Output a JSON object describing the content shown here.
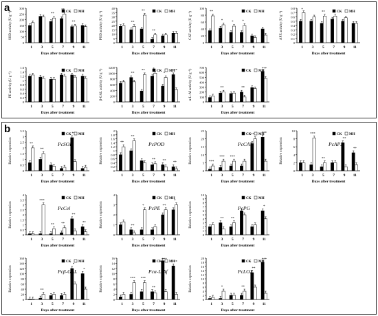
{
  "panels": [
    {
      "label": "a"
    },
    {
      "label": "b"
    }
  ],
  "legend": {
    "ck": "CK",
    "mh": "MH"
  },
  "colors": {
    "ck": "#000000",
    "mh": "#ffffff",
    "axis": "#000000"
  },
  "chart_data": [
    {
      "panel": "a",
      "type": "bar",
      "ylabel": "SOD activity (U g⁻¹)",
      "xlabel": "Days after treatment",
      "categories": [
        "1",
        "3",
        "5",
        "7",
        "9",
        "11"
      ],
      "ylim": [
        0,
        300
      ],
      "yticks": [
        "0",
        "50",
        "100",
        "150",
        "200",
        "250",
        "300"
      ],
      "series": [
        {
          "name": "CK",
          "values": [
            150,
            230,
            185,
            210,
            140,
            150
          ]
        },
        {
          "name": "MH",
          "values": [
            175,
            225,
            215,
            250,
            145,
            140
          ]
        }
      ],
      "labels": [
        "",
        "",
        "**",
        "**",
        "**",
        ""
      ]
    },
    {
      "panel": "a",
      "type": "bar",
      "ylabel": "POD activity (U g⁻¹)",
      "xlabel": "Days after treatment",
      "categories": [
        "1",
        "3",
        "5",
        "7",
        "9",
        "11"
      ],
      "ylim": [
        0,
        40
      ],
      "yticks": [
        "0",
        "5",
        "10",
        "15",
        "20",
        "25",
        "30",
        "35",
        "40"
      ],
      "series": [
        {
          "name": "CK",
          "values": [
            19,
            15,
            16,
            4,
            8,
            11
          ]
        },
        {
          "name": "MH",
          "values": [
            20,
            19,
            32,
            9,
            9,
            11
          ]
        }
      ],
      "labels": [
        "",
        "**",
        "**",
        "**",
        "",
        ""
      ]
    },
    {
      "panel": "a",
      "type": "bar",
      "ylabel": "CAT activity (U g⁻¹)",
      "xlabel": "Days after treatment",
      "categories": [
        "1",
        "3",
        "5",
        "7",
        "9",
        "11"
      ],
      "ylim": [
        0,
        100
      ],
      "yticks": [
        "0",
        "20",
        "40",
        "60",
        "80",
        "100"
      ],
      "series": [
        {
          "name": "CK",
          "values": [
            35,
            42,
            30,
            30,
            20,
            40
          ]
        },
        {
          "name": "MH",
          "values": [
            78,
            52,
            48,
            50,
            15,
            22
          ]
        }
      ],
      "labels": [
        "**",
        "*",
        "*",
        "*",
        "",
        ""
      ]
    },
    {
      "panel": "a",
      "type": "bar",
      "ylabel": "APX activity (U g⁻¹)",
      "xlabel": "Days after treatment",
      "categories": [
        "1",
        "3",
        "5",
        "7",
        "9",
        "11"
      ],
      "ylim": [
        0,
        0.8
      ],
      "yticks": [
        "0",
        "0.1",
        "0.2",
        "0.3",
        "0.4",
        "0.5",
        "0.6",
        "0.7",
        "0.8"
      ],
      "series": [
        {
          "name": "CK",
          "values": [
            0.5,
            0.5,
            0.45,
            0.55,
            0.5,
            0.45
          ]
        },
        {
          "name": "MH",
          "values": [
            0.7,
            0.6,
            0.62,
            0.62,
            0.58,
            0.45
          ]
        }
      ],
      "labels": [
        "*",
        "",
        "**",
        "*",
        "",
        ""
      ]
    },
    {
      "panel": "a",
      "type": "bar",
      "ylabel": "PE activity (U g⁻¹)",
      "xlabel": "Days after treatment",
      "categories": [
        "1",
        "3",
        "5",
        "7",
        "9",
        "11"
      ],
      "ylim": [
        0,
        1.6
      ],
      "yticks": [
        "0",
        "0.2",
        "0.4",
        "0.6",
        "0.8",
        "1",
        "1.2",
        "1.4",
        "1.6"
      ],
      "series": [
        {
          "name": "CK",
          "values": [
            1.2,
            1.15,
            1.05,
            1.25,
            1.25,
            1.2
          ]
        },
        {
          "name": "MH",
          "values": [
            1.25,
            1.1,
            1.05,
            1.2,
            1.15,
            1.1
          ]
        }
      ],
      "labels": [
        "",
        "",
        "",
        "",
        "",
        ""
      ]
    },
    {
      "panel": "a",
      "type": "bar",
      "ylabel": "β-GAL activity (U g⁻¹)",
      "xlabel": "Days after treatment",
      "categories": [
        "1",
        "3",
        "5",
        "7",
        "9",
        "11"
      ],
      "ylim": [
        0,
        1200
      ],
      "yticks": [
        "0",
        "200",
        "400",
        "600",
        "800",
        "1000",
        "1200"
      ],
      "series": [
        {
          "name": "CK",
          "values": [
            650,
            850,
            380,
            900,
            550,
            950
          ]
        },
        {
          "name": "MH",
          "values": [
            700,
            700,
            950,
            1000,
            850,
            430
          ]
        }
      ],
      "labels": [
        "",
        "**",
        "**",
        "*",
        "*",
        "***"
      ]
    },
    {
      "panel": "a",
      "type": "bar",
      "ylabel": "α-L-Af activity (U g⁻¹)",
      "xlabel": "Days after treatment",
      "categories": [
        "1",
        "3",
        "5",
        "7",
        "9",
        "11"
      ],
      "ylim": [
        0,
        700
      ],
      "yticks": [
        "0",
        "100",
        "200",
        "300",
        "400",
        "500",
        "600",
        "700"
      ],
      "series": [
        {
          "name": "CK",
          "values": [
            90,
            180,
            170,
            200,
            290,
            620
          ]
        },
        {
          "name": "MH",
          "values": [
            120,
            200,
            180,
            100,
            270,
            480
          ]
        }
      ],
      "labels": [
        "",
        "**",
        "",
        "**",
        "",
        "***"
      ]
    },
    {
      "panel": "b",
      "type": "bar",
      "gene": "PcSOD",
      "ylabel": "Relative expression",
      "xlabel": "Days after treatment",
      "categories": [
        "1",
        "3",
        "5",
        "7",
        "9",
        "11"
      ],
      "ylim": [
        0,
        3.5
      ],
      "yticks": [
        "0",
        "0.5",
        "1",
        "1.5",
        "2",
        "2.5",
        "3",
        "3.5"
      ],
      "series": [
        {
          "name": "CK",
          "values": [
            0.7,
            1.0,
            0.5,
            0.2,
            2.9,
            0.2
          ]
        },
        {
          "name": "MH",
          "values": [
            2.0,
            1.5,
            0.4,
            0.3,
            0.8,
            0.3
          ]
        }
      ],
      "labels": [
        "**",
        "**",
        "",
        "",
        "**",
        ""
      ]
    },
    {
      "panel": "b",
      "type": "bar",
      "gene": "PcPOD",
      "ylabel": "Relative expression",
      "xlabel": "Days after treatment",
      "categories": [
        "1",
        "3",
        "5",
        "7",
        "9",
        "11"
      ],
      "ylim": [
        0,
        2.0
      ],
      "yticks": [
        "0",
        "0.2",
        "0.4",
        "0.6",
        "0.8",
        "1",
        "1.2",
        "1.4",
        "1.6",
        "1.8",
        "2"
      ],
      "series": [
        {
          "name": "CK",
          "values": [
            0.8,
            1.0,
            0.5,
            0.3,
            0.3,
            0.2
          ]
        },
        {
          "name": "MH",
          "values": [
            1.2,
            1.5,
            0.4,
            0.35,
            0.2,
            0.1
          ]
        }
      ],
      "labels": [
        "**",
        "**",
        "",
        "**",
        "**",
        "**"
      ]
    },
    {
      "panel": "b",
      "type": "bar",
      "gene": "PcCAT",
      "ylabel": "Relative expression",
      "xlabel": "Days after treatment",
      "categories": [
        "1",
        "3",
        "5",
        "7",
        "9",
        "11"
      ],
      "ylim": [
        0,
        25
      ],
      "yticks": [
        "0",
        "5",
        "10",
        "15",
        "20",
        "25"
      ],
      "series": [
        {
          "name": "CK",
          "values": [
            1,
            2,
            3,
            3,
            17,
            21
          ]
        },
        {
          "name": "MH",
          "values": [
            3,
            6,
            6,
            6,
            20,
            6
          ]
        }
      ],
      "labels": [
        "***",
        "***",
        "***",
        "",
        "***",
        "***"
      ]
    },
    {
      "panel": "b",
      "type": "bar",
      "gene": "PcAPX",
      "ylabel": "Relative expression",
      "xlabel": "Days after treatment",
      "categories": [
        "1",
        "3",
        "5",
        "7",
        "9",
        "11"
      ],
      "ylim": [
        0,
        10
      ],
      "yticks": [
        "0",
        "2",
        "4",
        "6",
        "8",
        "10"
      ],
      "series": [
        {
          "name": "CK",
          "values": [
            2,
            1.5,
            1,
            2,
            7,
            4.5
          ]
        },
        {
          "name": "MH",
          "values": [
            2,
            8.2,
            2,
            2,
            1,
            1.5
          ]
        }
      ],
      "labels": [
        "",
        "***",
        "**",
        "",
        "**",
        "**"
      ]
    },
    {
      "panel": "b",
      "type": "bar",
      "gene": "PcCel",
      "ylabel": "Relative expression",
      "xlabel": "Days after treatment",
      "categories": [
        "1",
        "3",
        "5",
        "7",
        "9",
        "11"
      ],
      "ylim": [
        0,
        4.0
      ],
      "yticks": [
        "0",
        "0.5",
        "1",
        "1.5",
        "2",
        "2.5",
        "3",
        "3.5",
        "4"
      ],
      "series": [
        {
          "name": "CK",
          "values": [
            0.1,
            0.1,
            0.1,
            0.2,
            1.6,
            0.8
          ]
        },
        {
          "name": "MH",
          "values": [
            0.1,
            3.0,
            0.6,
            0.7,
            0.4,
            0.3
          ]
        }
      ],
      "labels": [
        "",
        "***",
        "**",
        "**",
        "**",
        "**"
      ]
    },
    {
      "panel": "b",
      "type": "bar",
      "gene": "PcPE",
      "ylabel": "Relative expression",
      "xlabel": "Days after treatment",
      "categories": [
        "1",
        "3",
        "5",
        "7",
        "9",
        "11"
      ],
      "ylim": [
        0,
        4
      ],
      "yticks": [
        "0",
        "1",
        "2",
        "3",
        "4"
      ],
      "series": [
        {
          "name": "CK",
          "values": [
            1,
            0.5,
            0.5,
            0.5,
            2,
            2.5
          ]
        },
        {
          "name": "MH",
          "values": [
            1.3,
            0.2,
            2.5,
            0.8,
            2.5,
            3
          ]
        }
      ],
      "labels": [
        "",
        "**",
        "*",
        "",
        "**",
        "*"
      ]
    },
    {
      "panel": "b",
      "type": "bar",
      "gene": "PcPG",
      "ylabel": "Relative expression",
      "xlabel": "Days after treatment",
      "categories": [
        "1",
        "3",
        "5",
        "7",
        "9",
        "11"
      ],
      "ylim": [
        0,
        10
      ],
      "yticks": [
        "0",
        "1",
        "2",
        "3",
        "4",
        "5",
        "6",
        "7",
        "8",
        "9",
        "10"
      ],
      "series": [
        {
          "name": "CK",
          "values": [
            2,
            3,
            2,
            6,
            2,
            6
          ]
        },
        {
          "name": "MH",
          "values": [
            2.5,
            1.5,
            3,
            5,
            2.5,
            4
          ]
        }
      ],
      "labels": [
        "",
        "**",
        "**",
        "",
        "",
        "*"
      ]
    },
    {
      "panel": "b",
      "type": "bar",
      "gene": "Pcβ-GAL",
      "ylabel": "Relative expression",
      "xlabel": "Days after treatment",
      "categories": [
        "1",
        "3",
        "5",
        "7",
        "9",
        "11"
      ],
      "ylim": [
        0,
        160
      ],
      "yticks": [
        "0",
        "20",
        "40",
        "60",
        "80",
        "100",
        "120",
        "140",
        "160"
      ],
      "series": [
        {
          "name": "CK",
          "values": [
            2,
            5,
            15,
            15,
            120,
            100
          ]
        },
        {
          "name": "MH",
          "values": [
            2,
            20,
            20,
            20,
            60,
            40
          ]
        }
      ],
      "labels": [
        "",
        "**",
        "",
        "",
        "*",
        "*"
      ]
    },
    {
      "panel": "b",
      "type": "bar",
      "gene": "Pcα-L-Af",
      "ylabel": "Relative expression",
      "xlabel": "Days after treatment",
      "categories": [
        "1",
        "3",
        "5",
        "7",
        "9",
        "11"
      ],
      "ylim": [
        0,
        16
      ],
      "yticks": [
        "0",
        "2",
        "4",
        "6",
        "8",
        "10",
        "12",
        "14",
        "16"
      ],
      "series": [
        {
          "name": "CK",
          "values": [
            1,
            2,
            3,
            3,
            15,
            13
          ]
        },
        {
          "name": "MH",
          "values": [
            2,
            6.5,
            6.5,
            2.5,
            3,
            2
          ]
        }
      ],
      "labels": [
        "",
        "***",
        "***",
        "**",
        "***",
        "***"
      ]
    },
    {
      "panel": "b",
      "type": "bar",
      "gene": "PcLOX",
      "ylabel": "Relative expression",
      "xlabel": "Days after treatment",
      "categories": [
        "1",
        "3",
        "5",
        "7",
        "9",
        "11"
      ],
      "ylim": [
        0,
        20
      ],
      "yticks": [
        "0",
        "2",
        "4",
        "6",
        "8",
        "10",
        "12",
        "14",
        "16",
        "18",
        "20"
      ],
      "series": [
        {
          "name": "CK",
          "values": [
            0.5,
            0.5,
            2,
            2,
            13,
            18
          ]
        },
        {
          "name": "MH",
          "values": [
            1,
            4,
            2,
            4,
            6,
            3
          ]
        }
      ],
      "labels": [
        "",
        "*",
        "",
        "**",
        "**",
        "***"
      ]
    }
  ]
}
